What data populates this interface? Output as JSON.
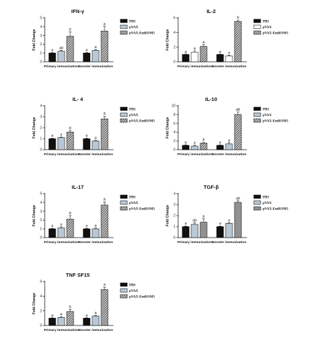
{
  "chart_data": [
    {
      "type": "bar",
      "title": "IFN-γ",
      "ylabel": "Fold Change",
      "categories": [
        "Primary immunization",
        "Booster immunization"
      ],
      "ylim": [
        0,
        5
      ],
      "yticks": [
        0,
        1,
        2,
        3,
        4,
        5
      ],
      "legend": "right",
      "series": [
        {
          "name": "PBS",
          "values": [
            1.0,
            1.0
          ],
          "errors": [
            0.05,
            0.05
          ],
          "letters": [
            "a",
            "a"
          ],
          "fill": "solid",
          "color": "#111111"
        },
        {
          "name": "pVAX",
          "values": [
            1.2,
            1.3
          ],
          "errors": [
            0.1,
            0.1
          ],
          "letters": [
            "ab",
            "a"
          ],
          "fill": "solid",
          "color": "#b9c8d4"
        },
        {
          "name": "pVAX-EmROM3",
          "values": [
            2.9,
            3.5
          ],
          "errors": [
            0.5,
            0.5
          ],
          "letters": [
            "b",
            "b"
          ],
          "fill": "hatch",
          "color": "#555555"
        }
      ]
    },
    {
      "type": "bar",
      "title": "IL-2",
      "ylabel": "Fold Change",
      "categories": [
        "Primary immunization",
        "Booster immunization"
      ],
      "ylim": [
        0,
        6
      ],
      "yticks": [
        0,
        2,
        4,
        6
      ],
      "legend": "right",
      "series": [
        {
          "name": "PBS",
          "values": [
            1.0,
            1.0
          ],
          "errors": [
            0.05,
            0.05
          ],
          "letters": [
            "a",
            "a"
          ],
          "fill": "solid",
          "color": "#111111"
        },
        {
          "name": "pVAX",
          "values": [
            1.3,
            0.8
          ],
          "errors": [
            0.2,
            0.1
          ],
          "letters": [
            "a",
            "a"
          ],
          "fill": "open",
          "color": "#ffffff"
        },
        {
          "name": "pVAX-EmROM3",
          "values": [
            2.1,
            5.5
          ],
          "errors": [
            0.25,
            0.2
          ],
          "letters": [
            "a",
            "b"
          ],
          "fill": "hatch",
          "color": "#555555"
        }
      ]
    },
    {
      "type": "bar",
      "title": "IL- 4",
      "ylabel": "Fold Change",
      "categories": [
        "Primary immunization",
        "Booster immunization"
      ],
      "ylim": [
        0,
        4
      ],
      "yticks": [
        0,
        1,
        2,
        3,
        4
      ],
      "legend": "right",
      "series": [
        {
          "name": "PBS",
          "values": [
            1.0,
            1.0
          ],
          "errors": [
            0.05,
            0.05
          ],
          "letters": [
            "a",
            "a"
          ],
          "fill": "solid",
          "color": "#111111"
        },
        {
          "name": "pVAX",
          "values": [
            1.1,
            0.8
          ],
          "errors": [
            0.05,
            0.05
          ],
          "letters": [
            "a",
            "a"
          ],
          "fill": "solid",
          "color": "#b9c8d4"
        },
        {
          "name": "pVAX-EmROM3",
          "values": [
            1.6,
            2.8
          ],
          "errors": [
            0.15,
            0.25
          ],
          "letters": [
            "b",
            "b"
          ],
          "fill": "hatch",
          "color": "#555555"
        }
      ]
    },
    {
      "type": "bar",
      "title": "IL-10",
      "ylabel": "Fold Change",
      "categories": [
        "Primary immunization",
        "Booster immunization"
      ],
      "ylim": [
        0,
        10
      ],
      "yticks": [
        0,
        2,
        4,
        6,
        8,
        10
      ],
      "legend": "right",
      "series": [
        {
          "name": "PBS",
          "values": [
            1.0,
            1.0
          ],
          "errors": [
            0.1,
            0.1
          ],
          "letters": [
            "a",
            "a"
          ],
          "fill": "solid",
          "color": "#111111"
        },
        {
          "name": "pVAX",
          "values": [
            0.8,
            1.3
          ],
          "errors": [
            0.2,
            0.3
          ],
          "letters": [
            "a",
            "a"
          ],
          "fill": "solid",
          "color": "#b9c8d4"
        },
        {
          "name": "pVAX-EmROM3",
          "values": [
            1.5,
            8.0
          ],
          "errors": [
            0.2,
            0.6
          ],
          "letters": [
            "b",
            "ab"
          ],
          "fill": "hatch",
          "color": "#555555"
        }
      ]
    },
    {
      "type": "bar",
      "title": "IL-17",
      "ylabel": "Fold Change",
      "categories": [
        "Primary immunization",
        "Booster immunization"
      ],
      "ylim": [
        0,
        5
      ],
      "yticks": [
        0,
        1,
        2,
        3,
        4,
        5
      ],
      "legend": "right",
      "series": [
        {
          "name": "PBS",
          "values": [
            1.0,
            1.0
          ],
          "errors": [
            0.05,
            0.05
          ],
          "letters": [
            "a",
            "a"
          ],
          "fill": "solid",
          "color": "#111111"
        },
        {
          "name": "pVAX",
          "values": [
            1.1,
            1.0
          ],
          "errors": [
            0.1,
            0.1
          ],
          "letters": [
            "a",
            "a"
          ],
          "fill": "solid",
          "color": "#b9c8d4"
        },
        {
          "name": "pVAX-EmROM3",
          "values": [
            2.1,
            3.7
          ],
          "errors": [
            0.4,
            0.35
          ],
          "letters": [
            "b",
            "b"
          ],
          "fill": "hatch",
          "color": "#555555"
        }
      ]
    },
    {
      "type": "bar",
      "title": "TGF-β",
      "ylabel": "Fold Change",
      "categories": [
        "Primary immunization",
        "Booster immunization"
      ],
      "ylim": [
        0,
        4
      ],
      "yticks": [
        0,
        1,
        2,
        3,
        4
      ],
      "legend": "right",
      "series": [
        {
          "name": "PBS",
          "values": [
            1.0,
            1.0
          ],
          "errors": [
            0.05,
            0.05
          ],
          "letters": [
            "a",
            "a"
          ],
          "fill": "solid",
          "color": "#111111"
        },
        {
          "name": "pVAX",
          "values": [
            1.2,
            1.3
          ],
          "errors": [
            0.15,
            0.05
          ],
          "letters": [
            "ab",
            "a"
          ],
          "fill": "solid",
          "color": "#b9c8d4"
        },
        {
          "name": "pVAX-EmROM3",
          "values": [
            1.4,
            3.2
          ],
          "errors": [
            0.3,
            0.15
          ],
          "letters": [
            "b",
            "ab"
          ],
          "fill": "check",
          "color": "#555555"
        }
      ]
    },
    {
      "type": "bar",
      "title": "TNF SF15",
      "ylabel": "Fold Change",
      "categories": [
        "Primary immunization",
        "Booster immunization"
      ],
      "ylim": [
        0,
        6
      ],
      "yticks": [
        0,
        2,
        4,
        6
      ],
      "legend": "right",
      "series": [
        {
          "name": "PBS",
          "values": [
            1.0,
            1.0
          ],
          "errors": [
            0.05,
            0.05
          ],
          "letters": [
            "a",
            "a"
          ],
          "fill": "solid",
          "color": "#111111"
        },
        {
          "name": "pVAX",
          "values": [
            1.1,
            1.3
          ],
          "errors": [
            0.1,
            0.1
          ],
          "letters": [
            "a",
            "a"
          ],
          "fill": "solid",
          "color": "#b9c8d4"
        },
        {
          "name": "pVAX-EmROM3",
          "values": [
            1.9,
            4.9
          ],
          "errors": [
            0.3,
            0.3
          ],
          "letters": [
            "b",
            "b"
          ],
          "fill": "hatch",
          "color": "#555555"
        }
      ]
    }
  ]
}
